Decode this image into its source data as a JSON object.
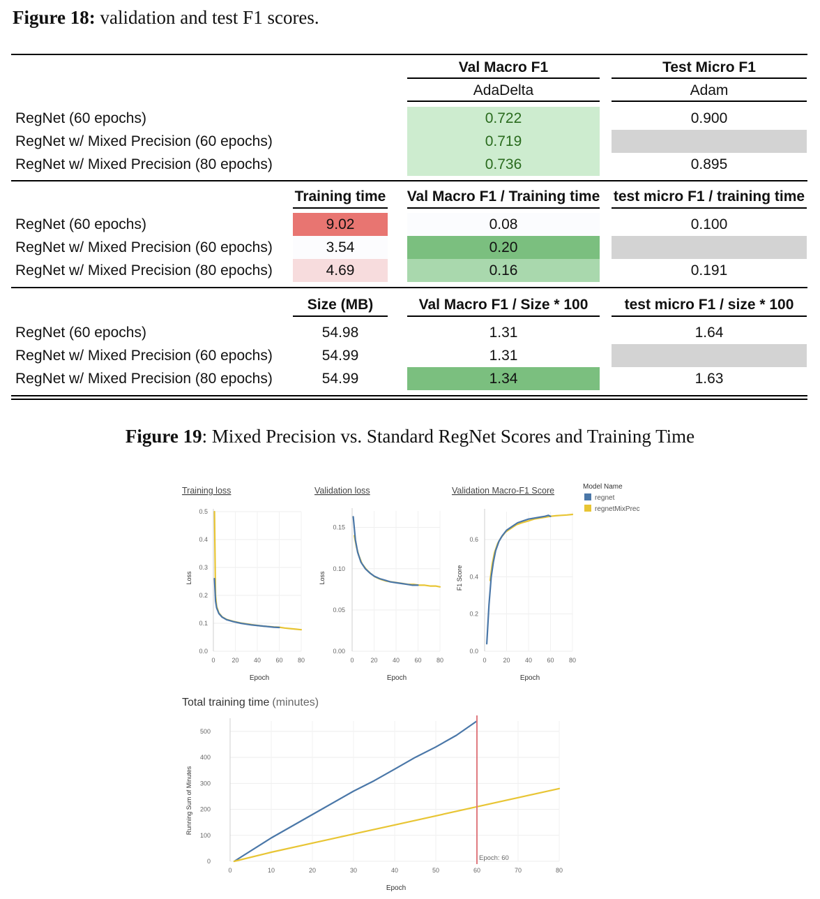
{
  "fig18": {
    "label": "Figure 18:",
    "text": " validation and test F1 scores."
  },
  "rows": [
    "RegNet (60 epochs)",
    "RegNet w/ Mixed Precision (60 epochs)",
    "RegNet w/ Mixed Precision (80 epochs)"
  ],
  "section1": {
    "col_val": "Val Macro F1",
    "col_val_sub": "AdaDelta",
    "col_test": "Test Micro F1",
    "col_test_sub": "Adam",
    "val": [
      "0.722",
      "0.719",
      "0.736"
    ],
    "test": [
      "0.900",
      "",
      "0.895"
    ]
  },
  "section2": {
    "col_time": "Training time",
    "col_val": "Val Macro F1 / Training time",
    "col_test": "test micro F1 / training time",
    "time": [
      "9.02",
      "3.54",
      "4.69"
    ],
    "val": [
      "0.08",
      "0.20",
      "0.16"
    ],
    "test": [
      "0.100",
      "",
      "0.191"
    ]
  },
  "section3": {
    "col_size": "Size (MB)",
    "col_val": "Val Macro F1 / Size * 100",
    "col_test": "test micro F1 / size * 100",
    "size": [
      "54.98",
      "54.99",
      "54.99"
    ],
    "val": [
      "1.31",
      "1.31",
      "1.34"
    ],
    "test": [
      "1.64",
      "",
      "1.63"
    ]
  },
  "colors": {
    "green_light": "#cdeccf",
    "green_mid": "#a9d8ad",
    "green_strong": "#7bbf7f",
    "red_strong": "#e87571",
    "red_light": "#f7dcdd",
    "gray": "#d3d3d3",
    "green_text": "#2a6b1e",
    "regnet": "#4a77a8",
    "regnetMixPrec": "#e8c534",
    "epoch_line": "#e07a80"
  },
  "fig19": {
    "label": "Figure 19",
    "text": ": Mixed Precision vs. Standard RegNet Scores and Training Time"
  },
  "legend": {
    "title": "Model Name",
    "items": [
      "regnet",
      "regnetMixPrec"
    ]
  },
  "chart_data": [
    {
      "type": "line",
      "title": "Training loss",
      "xlabel": "Epoch",
      "ylabel": "Loss",
      "xlim": [
        0,
        80
      ],
      "ylim": [
        0,
        0.5
      ],
      "xticks": [
        "0",
        "20",
        "40",
        "60",
        "80"
      ],
      "yticks": [
        "0.0",
        "0.1",
        "0.2",
        "0.3",
        "0.4",
        "0.5"
      ],
      "series": [
        {
          "name": "regnet",
          "x": [
            1,
            2,
            3,
            5,
            8,
            12,
            18,
            25,
            35,
            45,
            55,
            60
          ],
          "y": [
            0.26,
            0.18,
            0.155,
            0.135,
            0.122,
            0.113,
            0.106,
            0.1,
            0.094,
            0.09,
            0.086,
            0.085
          ]
        },
        {
          "name": "regnetMixPrec",
          "x": [
            1,
            2,
            3,
            5,
            8,
            12,
            18,
            25,
            35,
            45,
            55,
            60,
            65,
            70,
            75,
            80
          ],
          "y": [
            0.5,
            0.2,
            0.16,
            0.137,
            0.123,
            0.114,
            0.107,
            0.101,
            0.095,
            0.09,
            0.087,
            0.086,
            0.083,
            0.081,
            0.079,
            0.077
          ]
        }
      ]
    },
    {
      "type": "line",
      "title": "Validation loss",
      "xlabel": "Epoch",
      "ylabel": "Loss",
      "xlim": [
        0,
        80
      ],
      "ylim": [
        0,
        0.17
      ],
      "xticks": [
        "0",
        "20",
        "40",
        "60",
        "80"
      ],
      "yticks": [
        "0.00",
        "0.05",
        "0.10",
        "0.15"
      ],
      "series": [
        {
          "name": "regnet",
          "x": [
            1,
            3,
            5,
            8,
            12,
            16,
            20,
            25,
            30,
            35,
            40,
            45,
            50,
            55,
            60
          ],
          "y": [
            0.163,
            0.135,
            0.12,
            0.108,
            0.1,
            0.095,
            0.091,
            0.088,
            0.086,
            0.084,
            0.083,
            0.082,
            0.081,
            0.08,
            0.08
          ]
        },
        {
          "name": "regnetMixPrec",
          "x": [
            2,
            4,
            6,
            9,
            13,
            17,
            21,
            26,
            31,
            36,
            41,
            46,
            51,
            56,
            61,
            66,
            71,
            76,
            80
          ],
          "y": [
            0.14,
            0.126,
            0.116,
            0.106,
            0.099,
            0.094,
            0.09,
            0.087,
            0.085,
            0.084,
            0.083,
            0.082,
            0.081,
            0.081,
            0.08,
            0.08,
            0.079,
            0.079,
            0.078
          ]
        }
      ]
    },
    {
      "type": "line",
      "title": "Validation Macro-F1 Score",
      "xlabel": "Epoch",
      "ylabel": "F1 Score",
      "xlim": [
        0,
        80
      ],
      "ylim": [
        0,
        0.75
      ],
      "xticks": [
        "0",
        "20",
        "40",
        "60",
        "80"
      ],
      "yticks": [
        "0.0",
        "0.2",
        "0.4",
        "0.6"
      ],
      "series": [
        {
          "name": "regnet",
          "x": [
            2,
            4,
            6,
            8,
            10,
            13,
            16,
            20,
            25,
            30,
            35,
            40,
            45,
            50,
            55,
            58,
            60
          ],
          "y": [
            0.04,
            0.25,
            0.4,
            0.48,
            0.54,
            0.59,
            0.62,
            0.65,
            0.67,
            0.69,
            0.7,
            0.71,
            0.715,
            0.72,
            0.725,
            0.73,
            0.725
          ]
        },
        {
          "name": "regnetMixPrec",
          "x": [
            5,
            7,
            9,
            12,
            15,
            19,
            24,
            29,
            34,
            40,
            45,
            50,
            55,
            60,
            65,
            70,
            75,
            80
          ],
          "y": [
            0.38,
            0.47,
            0.53,
            0.58,
            0.61,
            0.64,
            0.66,
            0.68,
            0.69,
            0.7,
            0.71,
            0.715,
            0.72,
            0.725,
            0.728,
            0.73,
            0.732,
            0.735
          ]
        }
      ]
    },
    {
      "type": "line",
      "title": "Total training time",
      "title_suffix": "(minutes)",
      "xlabel": "Epoch",
      "ylabel": "Running Sum of Minutes",
      "xlim": [
        0,
        80
      ],
      "ylim": [
        0,
        540
      ],
      "xticks": [
        "0",
        "10",
        "20",
        "30",
        "40",
        "50",
        "60",
        "70",
        "80"
      ],
      "yticks": [
        "0",
        "100",
        "200",
        "300",
        "400",
        "500"
      ],
      "annotation": {
        "x": 60,
        "label": "Epoch: 60"
      },
      "series": [
        {
          "name": "regnet",
          "x": [
            1,
            10,
            20,
            30,
            35,
            40,
            45,
            50,
            55,
            60
          ],
          "y": [
            0,
            90,
            180,
            270,
            310,
            355,
            400,
            440,
            485,
            540
          ]
        },
        {
          "name": "regnetMixPrec",
          "x": [
            1,
            10,
            20,
            30,
            40,
            50,
            60,
            70,
            80
          ],
          "y": [
            0,
            35,
            70,
            105,
            140,
            175,
            210,
            245,
            280
          ]
        }
      ]
    }
  ]
}
